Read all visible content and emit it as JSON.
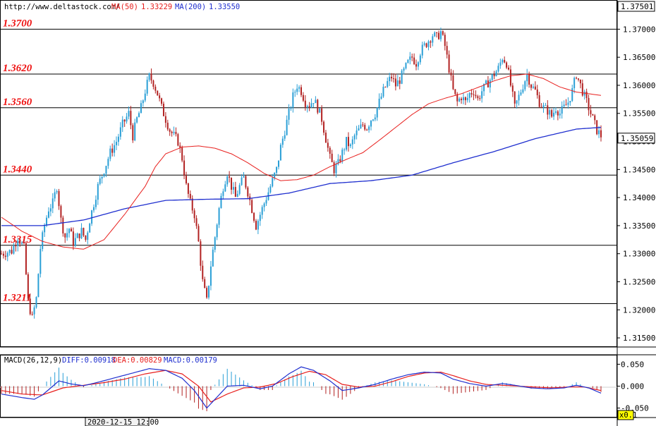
{
  "header": {
    "site": "http://www.deltastock.com/",
    "ma50_label": "MA(50)",
    "ma50_value": "1.33229",
    "ma200_label": "MA(200)",
    "ma200_value": "1.33550"
  },
  "macd_header": {
    "name": "MACD(26,12,9)",
    "diff": "DIFF:0.00918",
    "dea": "DEA:0.00829",
    "macd": "MACD:0.00179"
  },
  "colors": {
    "bull": "#2a9fd6",
    "bear": "#b22222",
    "ma50": "#e8201e",
    "ma200": "#1f2fcf",
    "level_text": "#ee1111",
    "grid_line": "#000000",
    "macd_diff": "#1f2fcf",
    "macd_dea": "#e8201e"
  },
  "bottom_bar": {
    "date_label": "2020-12-15 12:00",
    "scale_label": "x0.1"
  },
  "chart_data": {
    "type": "candlestick",
    "price_axis": {
      "ylim": [
        1.3135,
        1.3752
      ],
      "ticks": [
        "1.37000",
        "1.36500",
        "1.36000",
        "1.35500",
        "1.35000",
        "1.34500",
        "1.34000",
        "1.33500",
        "1.33000",
        "1.32500",
        "1.32000",
        "1.31500"
      ],
      "top_label": "1.37501",
      "current_label": "1.35059",
      "current_value": 1.35059
    },
    "levels": [
      {
        "label": "1.3700",
        "value": 1.37
      },
      {
        "label": "1.3620",
        "value": 1.362
      },
      {
        "label": "1.3560",
        "value": 1.356
      },
      {
        "label": "1.3440",
        "value": 1.344
      },
      {
        "label": "1.3315",
        "value": 1.3315
      },
      {
        "label": "1.3211",
        "value": 1.3211
      }
    ],
    "macd_axis": {
      "ylim": [
        -0.07,
        0.07
      ],
      "ticks": [
        "0.050",
        "0.000",
        "-0.050"
      ]
    },
    "close_path": [
      [
        0,
        1.33
      ],
      [
        5,
        1.3305
      ],
      [
        8,
        1.333
      ],
      [
        11,
        1.331
      ],
      [
        13,
        1.3215
      ],
      [
        15,
        1.3185
      ],
      [
        17,
        1.322
      ],
      [
        19,
        1.331
      ],
      [
        21,
        1.335
      ],
      [
        23,
        1.338
      ],
      [
        25,
        1.339
      ],
      [
        27,
        1.342
      ],
      [
        29,
        1.336
      ],
      [
        31,
        1.333
      ],
      [
        33,
        1.3345
      ],
      [
        35,
        1.332
      ],
      [
        37,
        1.333
      ],
      [
        39,
        1.334
      ],
      [
        41,
        1.3325
      ],
      [
        43,
        1.336
      ],
      [
        45,
        1.339
      ],
      [
        47,
        1.342
      ],
      [
        50,
        1.345
      ],
      [
        53,
        1.348
      ],
      [
        56,
        1.35
      ],
      [
        59,
        1.353
      ],
      [
        62,
        1.355
      ],
      [
        64,
        1.351
      ],
      [
        66,
        1.354
      ],
      [
        68,
        1.356
      ],
      [
        70,
        1.359
      ],
      [
        72,
        1.3615
      ],
      [
        74,
        1.3605
      ],
      [
        76,
        1.3585
      ],
      [
        78,
        1.356
      ],
      [
        80,
        1.354
      ],
      [
        82,
        1.352
      ],
      [
        84,
        1.351
      ],
      [
        86,
        1.35
      ],
      [
        88,
        1.347
      ],
      [
        90,
        1.342
      ],
      [
        92,
        1.339
      ],
      [
        94,
        1.337
      ],
      [
        96,
        1.332
      ],
      [
        98,
        1.325
      ],
      [
        100,
        1.3215
      ],
      [
        102,
        1.328
      ],
      [
        104,
        1.333
      ],
      [
        106,
        1.338
      ],
      [
        108,
        1.342
      ],
      [
        110,
        1.3445
      ],
      [
        112,
        1.342
      ],
      [
        114,
        1.34
      ],
      [
        116,
        1.342
      ],
      [
        118,
        1.3435
      ],
      [
        120,
        1.341
      ],
      [
        122,
        1.338
      ],
      [
        124,
        1.335
      ],
      [
        126,
        1.337
      ],
      [
        128,
        1.339
      ],
      [
        130,
        1.341
      ],
      [
        132,
        1.343
      ],
      [
        134,
        1.345
      ],
      [
        136,
        1.349
      ],
      [
        138,
        1.352
      ],
      [
        140,
        1.355
      ],
      [
        142,
        1.358
      ],
      [
        144,
        1.36
      ],
      [
        146,
        1.359
      ],
      [
        148,
        1.357
      ],
      [
        150,
        1.3565
      ],
      [
        152,
        1.3575
      ],
      [
        154,
        1.356
      ],
      [
        156,
        1.354
      ],
      [
        158,
        1.3505
      ],
      [
        160,
        1.347
      ],
      [
        162,
        1.345
      ],
      [
        164,
        1.346
      ],
      [
        166,
        1.348
      ],
      [
        168,
        1.35
      ],
      [
        170,
        1.349
      ],
      [
        172,
        1.351
      ],
      [
        174,
        1.352
      ],
      [
        176,
        1.353
      ],
      [
        178,
        1.3525
      ],
      [
        180,
        1.354
      ],
      [
        182,
        1.355
      ],
      [
        184,
        1.357
      ],
      [
        186,
        1.359
      ],
      [
        188,
        1.3605
      ],
      [
        190,
        1.3615
      ],
      [
        192,
        1.36
      ],
      [
        194,
        1.361
      ],
      [
        196,
        1.3625
      ],
      [
        198,
        1.364
      ],
      [
        200,
        1.365
      ],
      [
        202,
        1.364
      ],
      [
        204,
        1.366
      ],
      [
        206,
        1.367
      ],
      [
        208,
        1.368
      ],
      [
        210,
        1.369
      ],
      [
        212,
        1.3685
      ],
      [
        214,
        1.3695
      ],
      [
        216,
        1.367
      ],
      [
        218,
        1.363
      ],
      [
        220,
        1.359
      ],
      [
        222,
        1.357
      ],
      [
        224,
        1.358
      ],
      [
        226,
        1.357
      ],
      [
        228,
        1.3585
      ],
      [
        230,
        1.359
      ],
      [
        232,
        1.3575
      ],
      [
        234,
        1.359
      ],
      [
        236,
        1.36
      ],
      [
        238,
        1.361
      ],
      [
        240,
        1.362
      ],
      [
        242,
        1.363
      ],
      [
        244,
        1.365
      ],
      [
        246,
        1.364
      ],
      [
        248,
        1.36
      ],
      [
        250,
        1.356
      ],
      [
        252,
        1.358
      ],
      [
        254,
        1.36
      ],
      [
        256,
        1.362
      ],
      [
        258,
        1.36
      ],
      [
        260,
        1.359
      ],
      [
        262,
        1.357
      ],
      [
        264,
        1.356
      ],
      [
        266,
        1.3555
      ],
      [
        268,
        1.3545
      ],
      [
        270,
        1.356
      ],
      [
        272,
        1.355
      ],
      [
        274,
        1.356
      ],
      [
        276,
        1.357
      ],
      [
        278,
        1.359
      ],
      [
        280,
        1.362
      ],
      [
        282,
        1.36
      ],
      [
        284,
        1.358
      ],
      [
        286,
        1.356
      ],
      [
        288,
        1.354
      ],
      [
        290,
        1.352
      ],
      [
        292,
        1.351
      ]
    ],
    "ma50_path": [
      [
        0,
        1.3365
      ],
      [
        10,
        1.334
      ],
      [
        20,
        1.3322
      ],
      [
        30,
        1.3312
      ],
      [
        40,
        1.3308
      ],
      [
        50,
        1.3325
      ],
      [
        60,
        1.337
      ],
      [
        70,
        1.342
      ],
      [
        75,
        1.3455
      ],
      [
        80,
        1.3478
      ],
      [
        88,
        1.349
      ],
      [
        96,
        1.3492
      ],
      [
        104,
        1.3488
      ],
      [
        112,
        1.3478
      ],
      [
        120,
        1.3462
      ],
      [
        128,
        1.3443
      ],
      [
        136,
        1.343
      ],
      [
        144,
        1.3432
      ],
      [
        152,
        1.344
      ],
      [
        160,
        1.3455
      ],
      [
        168,
        1.3468
      ],
      [
        176,
        1.348
      ],
      [
        184,
        1.3502
      ],
      [
        192,
        1.3525
      ],
      [
        200,
        1.3548
      ],
      [
        208,
        1.3567
      ],
      [
        216,
        1.3577
      ],
      [
        224,
        1.3585
      ],
      [
        232,
        1.3596
      ],
      [
        240,
        1.3608
      ],
      [
        248,
        1.3617
      ],
      [
        256,
        1.362
      ],
      [
        264,
        1.3612
      ],
      [
        272,
        1.3597
      ],
      [
        280,
        1.3588
      ],
      [
        288,
        1.3584
      ],
      [
        292,
        1.3582
      ]
    ],
    "ma200_path": [
      [
        0,
        1.335
      ],
      [
        20,
        1.335
      ],
      [
        40,
        1.336
      ],
      [
        60,
        1.338
      ],
      [
        80,
        1.3395
      ],
      [
        100,
        1.3397
      ],
      [
        120,
        1.3398
      ],
      [
        140,
        1.3408
      ],
      [
        160,
        1.3425
      ],
      [
        180,
        1.343
      ],
      [
        200,
        1.344
      ],
      [
        220,
        1.3462
      ],
      [
        240,
        1.3482
      ],
      [
        260,
        1.3505
      ],
      [
        280,
        1.3522
      ],
      [
        292,
        1.3525
      ]
    ],
    "macd_diff_path": [
      [
        0,
        -0.018
      ],
      [
        10,
        -0.026
      ],
      [
        16,
        -0.03
      ],
      [
        20,
        -0.02
      ],
      [
        28,
        0.012
      ],
      [
        34,
        0.005
      ],
      [
        40,
        0.001
      ],
      [
        48,
        0.01
      ],
      [
        56,
        0.02
      ],
      [
        64,
        0.03
      ],
      [
        72,
        0.04
      ],
      [
        80,
        0.036
      ],
      [
        88,
        0.018
      ],
      [
        94,
        -0.01
      ],
      [
        100,
        -0.05
      ],
      [
        106,
        -0.02
      ],
      [
        110,
        0.0
      ],
      [
        118,
        0.002
      ],
      [
        126,
        -0.006
      ],
      [
        132,
        0.0
      ],
      [
        140,
        0.028
      ],
      [
        146,
        0.044
      ],
      [
        152,
        0.036
      ],
      [
        160,
        0.012
      ],
      [
        166,
        -0.01
      ],
      [
        174,
        -0.004
      ],
      [
        182,
        0.004
      ],
      [
        190,
        0.016
      ],
      [
        198,
        0.026
      ],
      [
        206,
        0.032
      ],
      [
        214,
        0.03
      ],
      [
        220,
        0.016
      ],
      [
        228,
        0.006
      ],
      [
        236,
        0.0
      ],
      [
        244,
        0.006
      ],
      [
        250,
        0.002
      ],
      [
        258,
        -0.004
      ],
      [
        266,
        -0.006
      ],
      [
        274,
        -0.004
      ],
      [
        280,
        0.002
      ],
      [
        286,
        -0.004
      ],
      [
        292,
        -0.016
      ]
    ],
    "macd_dea_path": [
      [
        0,
        -0.01
      ],
      [
        10,
        -0.018
      ],
      [
        20,
        -0.02
      ],
      [
        30,
        -0.004
      ],
      [
        40,
        0.002
      ],
      [
        50,
        0.008
      ],
      [
        60,
        0.016
      ],
      [
        70,
        0.028
      ],
      [
        80,
        0.036
      ],
      [
        88,
        0.028
      ],
      [
        96,
        0.0
      ],
      [
        102,
        -0.036
      ],
      [
        110,
        -0.018
      ],
      [
        118,
        -0.004
      ],
      [
        126,
        -0.002
      ],
      [
        134,
        0.006
      ],
      [
        142,
        0.022
      ],
      [
        150,
        0.034
      ],
      [
        158,
        0.026
      ],
      [
        166,
        0.004
      ],
      [
        174,
        -0.002
      ],
      [
        182,
        0.0
      ],
      [
        190,
        0.01
      ],
      [
        198,
        0.022
      ],
      [
        206,
        0.03
      ],
      [
        214,
        0.032
      ],
      [
        220,
        0.024
      ],
      [
        228,
        0.012
      ],
      [
        236,
        0.004
      ],
      [
        244,
        0.002
      ],
      [
        252,
        0.0
      ],
      [
        260,
        -0.002
      ],
      [
        268,
        -0.004
      ],
      [
        276,
        -0.002
      ],
      [
        284,
        -0.002
      ],
      [
        292,
        -0.01
      ]
    ]
  }
}
